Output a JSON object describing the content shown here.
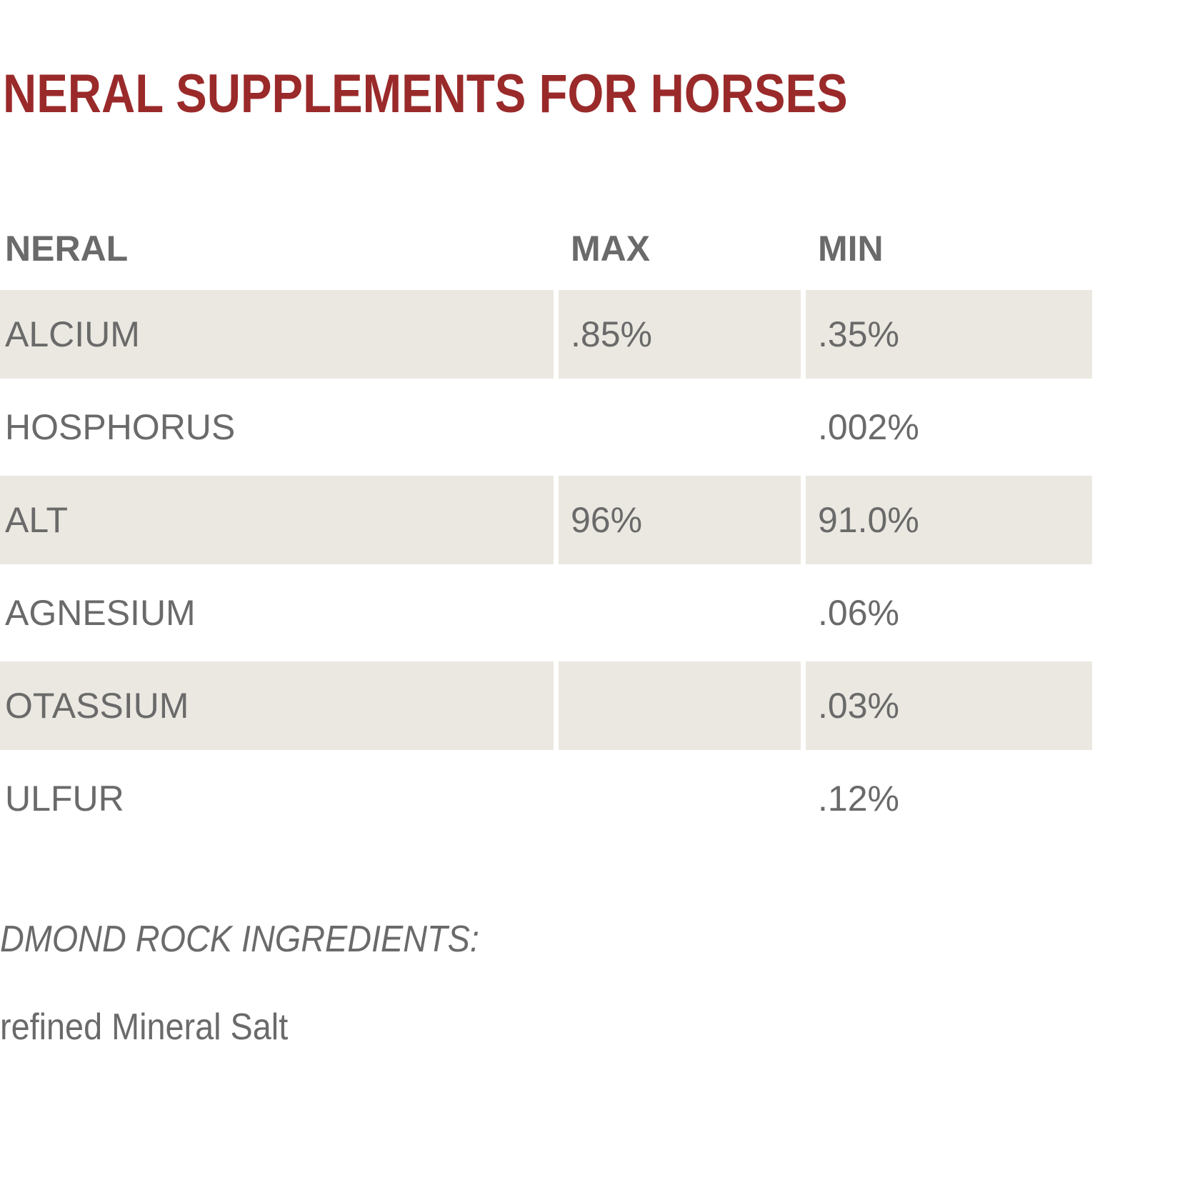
{
  "title": "NERAL SUPPLEMENTS FOR HORSES",
  "table": {
    "headers": [
      "NERAL",
      "MAX",
      "MIN"
    ],
    "rows": [
      {
        "mineral": "ALCIUM",
        "max": ".85%",
        "min": ".35%"
      },
      {
        "mineral": "HOSPHORUS",
        "max": "",
        "min": ".002%"
      },
      {
        "mineral": "ALT",
        "max": "96%",
        "min": "91.0%"
      },
      {
        "mineral": "AGNESIUM",
        "max": "",
        "min": ".06%"
      },
      {
        "mineral": "OTASSIUM",
        "max": "",
        "min": ".03%"
      },
      {
        "mineral": "ULFUR",
        "max": "",
        "min": ".12%"
      }
    ]
  },
  "ingredients": {
    "heading": "DMOND ROCK  INGREDIENTS:",
    "item": "refined Mineral Salt"
  },
  "colors": {
    "title": "#9a2a2a",
    "text": "#6a6a6a",
    "row_shade": "#ebe8e1"
  }
}
